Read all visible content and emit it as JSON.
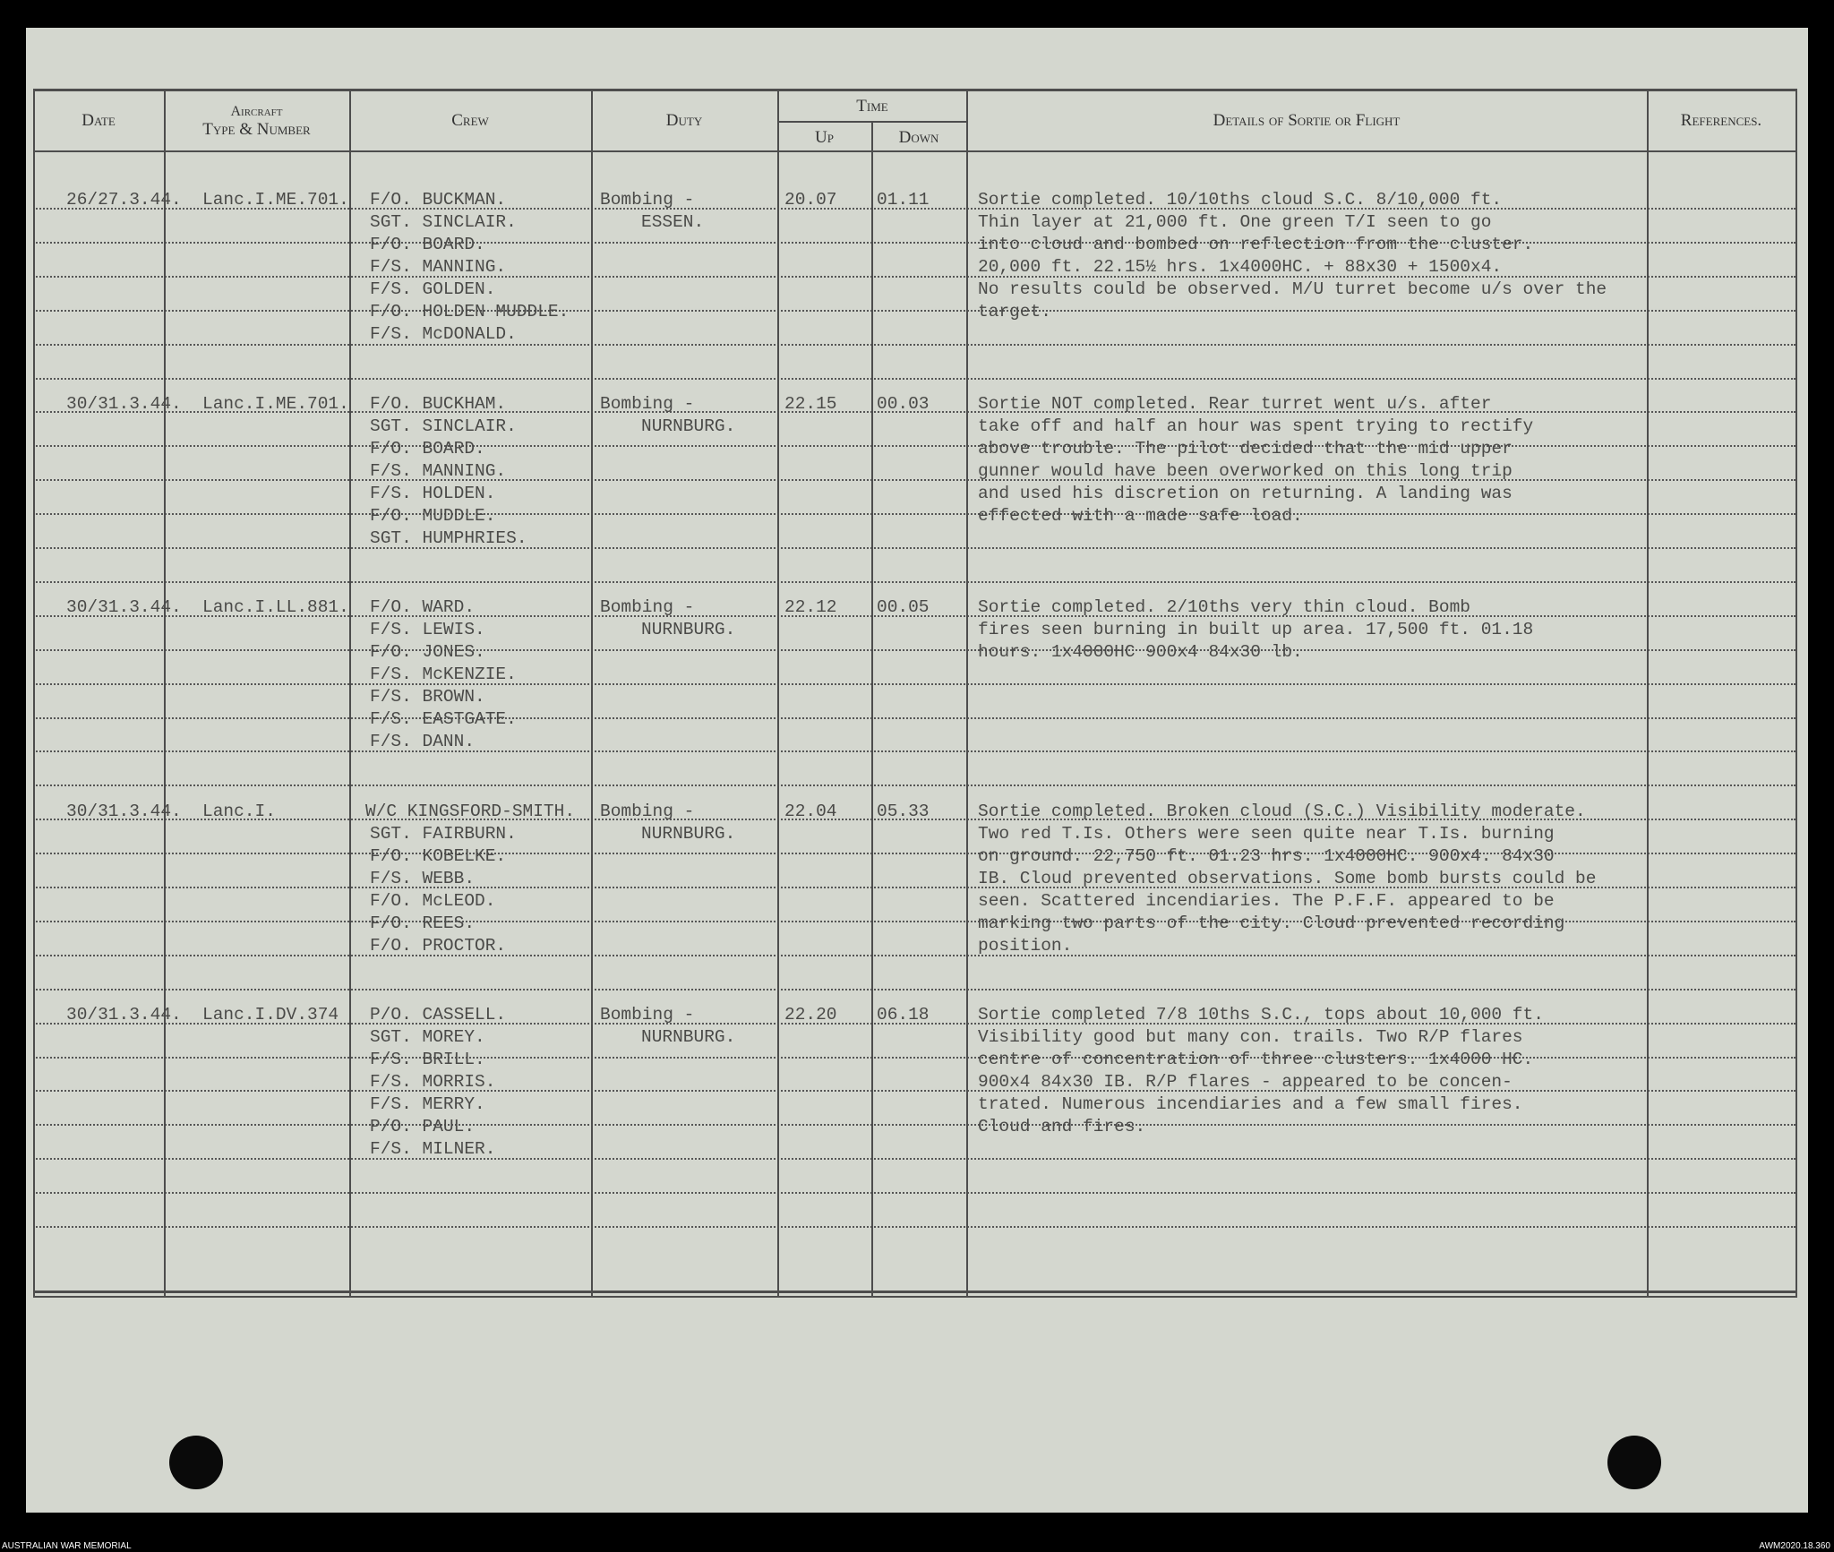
{
  "header": {
    "date": "Date",
    "aircraft_line1": "Aircraft",
    "aircraft_line2": "Type & Number",
    "crew": "Crew",
    "duty": "Duty",
    "time": "Time",
    "up": "Up",
    "down": "Down",
    "details": "Details of Sortie or Flight",
    "references": "References."
  },
  "entries": [
    {
      "date": "26/27.3.44.",
      "aircraft": "Lanc.I.ME.701.",
      "crew": [
        "F/O. BUCKMAN.",
        "SGT. SINCLAIR.",
        "F/O. BOARD.",
        "F/S. MANNING.",
        "F/S. GOLDEN.",
        "F/O. HOLDEN MUDDLE.",
        "F/S. McDONALD."
      ],
      "duty": [
        "Bombing -",
        "ESSEN."
      ],
      "up": "20.07",
      "down": "01.11",
      "details": [
        "Sortie completed. 10/10ths cloud S.C. 8/10,000 ft.",
        "Thin layer at 21,000 ft. One green T/I seen to go",
        "into cloud and bombed on reflection from the cluster.",
        "20,000 ft. 22.15½ hrs. 1x4000HC. + 88x30 + 1500x4.",
        "No results could be observed. M/U turret become u/s over the",
        "target."
      ]
    },
    {
      "date": "30/31.3.44.",
      "aircraft": "Lanc.I.ME.701.",
      "crew": [
        "F/O. BUCKHAM.",
        "SGT. SINCLAIR.",
        "F/O. BOARD.",
        "F/S. MANNING.",
        "F/S. HOLDEN.",
        "F/O. MUDDLE.",
        "SGT. HUMPHRIES."
      ],
      "duty": [
        "Bombing -",
        "NURNBURG."
      ],
      "up": "22.15",
      "down": "00.03",
      "details": [
        "Sortie NOT completed. Rear turret went u/s. after",
        "take off and half an hour was spent trying to rectify",
        "above trouble. The pilot decided that the mid upper",
        "gunner would have been overworked on this long trip",
        "and used his discretion on returning. A landing was",
        "effected with a made safe load."
      ]
    },
    {
      "date": "30/31.3.44.",
      "aircraft": "Lanc.I.LL.881.",
      "crew": [
        "F/O. WARD.",
        "F/S. LEWIS.",
        "F/O. JONES.",
        "F/S. McKENZIE.",
        "F/S. BROWN.",
        "F/S. EASTGATE.",
        "F/S. DANN."
      ],
      "duty": [
        "Bombing -",
        "NURNBURG."
      ],
      "up": "22.12",
      "down": "00.05",
      "details": [
        "Sortie completed. 2/10ths very thin cloud. Bomb",
        "fires seen burning in built up area. 17,500 ft. 01.18",
        "hours. 1x4000HC 900x4 84x30 lb."
      ]
    },
    {
      "date": "30/31.3.44.",
      "aircraft": "Lanc.I.",
      "crew": [
        "W/C KINGSFORD-SMITH.",
        "SGT. FAIRBURN.",
        "F/O. KOBELKE.",
        "F/S. WEBB.",
        "F/O. McLEOD.",
        "F/O. REES.",
        "F/O. PROCTOR."
      ],
      "duty": [
        "Bombing -",
        "NURNBURG."
      ],
      "up": "22.04",
      "down": "05.33",
      "details": [
        "Sortie completed. Broken cloud (S.C.) Visibility moderate.",
        "Two red T.Is. Others were seen quite near T.Is. burning",
        "on ground. 22,750 ft. 01.23 hrs. 1x4000HC. 900x4. 84x30",
        "IB. Cloud prevented observations. Some bomb bursts could be",
        "seen. Scattered incendiaries. The P.F.F. appeared to be",
        "marking two parts of the city. Cloud prevented recording",
        "position."
      ]
    },
    {
      "date": "30/31.3.44.",
      "aircraft": "Lanc.I.DV.374",
      "crew": [
        "P/O. CASSELL.",
        "SGT. MOREY.",
        "F/S. BRILL.",
        "F/S. MORRIS.",
        "F/S. MERRY.",
        "P/O. PAUL.",
        "F/S. MILNER."
      ],
      "duty": [
        "Bombing -",
        "NURNBURG."
      ],
      "up": "22.20",
      "down": "06.18",
      "details": [
        "Sortie completed 7/8 10ths S.C., tops about 10,000 ft.",
        "Visibility good but many con. trails. Two R/P flares",
        "centre of concentration of three clusters. 1x4000 HC.",
        "900x4 84x30 IB. R/P flares - appeared to be concen-",
        "trated. Numerous incendiaries and a few small fires.",
        "Cloud and fires."
      ]
    }
  ],
  "footer": {
    "left_credit": "AUSTRALIAN WAR MEMORIAL",
    "right_credit": "AWM2020.18.360"
  },
  "colors": {
    "paper": "#d4d7cf",
    "ink": "#4a4a48",
    "rules": "#4d4d4d"
  }
}
